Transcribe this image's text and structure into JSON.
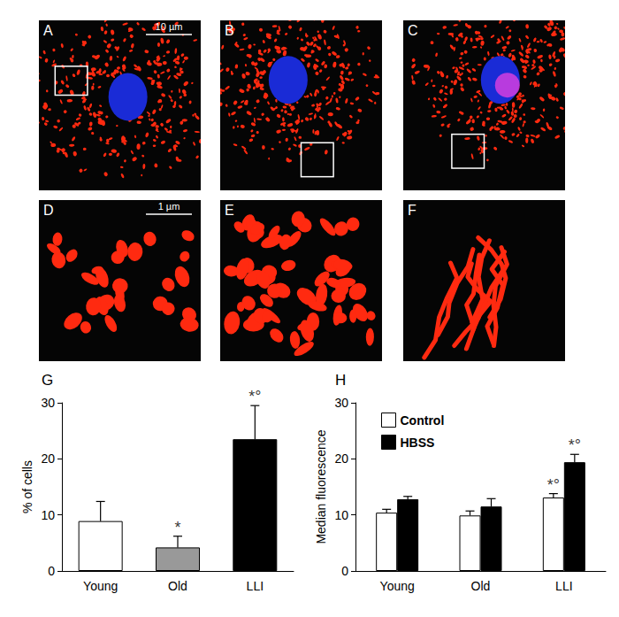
{
  "panels": [
    {
      "label": "A",
      "scale_bar": "10 µm"
    },
    {
      "label": "B"
    },
    {
      "label": "C"
    },
    {
      "label": "D",
      "scale_bar": "1 µm"
    },
    {
      "label": "E"
    },
    {
      "label": "F"
    }
  ],
  "chart_data": [
    {
      "type": "bar",
      "title": "G",
      "categories": [
        "Young",
        "Old",
        "LLI"
      ],
      "values": [
        8.9,
        4.2,
        23.5
      ],
      "errors": [
        3.5,
        2.0,
        6.0
      ],
      "significance": [
        null,
        "*",
        "*°"
      ],
      "colors": [
        "#ffffff",
        "#999999",
        "#000000"
      ],
      "ylabel": "% of cells",
      "ylim": [
        0,
        30
      ],
      "yticks": [
        0,
        10,
        20,
        30
      ],
      "grid": false
    },
    {
      "type": "bar",
      "title": "H",
      "categories": [
        "Young",
        "Old",
        "LLI"
      ],
      "series": [
        {
          "name": "Control",
          "color": "#ffffff",
          "values": [
            10.4,
            9.9,
            13.1
          ],
          "errors": [
            0.6,
            0.8,
            0.7
          ],
          "significance": [
            null,
            null,
            "*°"
          ]
        },
        {
          "name": "HBSS",
          "color": "#000000",
          "values": [
            12.8,
            11.5,
            19.4
          ],
          "errors": [
            0.5,
            1.4,
            1.4
          ],
          "significance": [
            null,
            null,
            "*°"
          ]
        }
      ],
      "ylabel": "Median fluorescence",
      "ylim": [
        0,
        30
      ],
      "yticks": [
        0,
        10,
        20,
        30
      ],
      "grid": false,
      "legend": "upper left"
    }
  ]
}
